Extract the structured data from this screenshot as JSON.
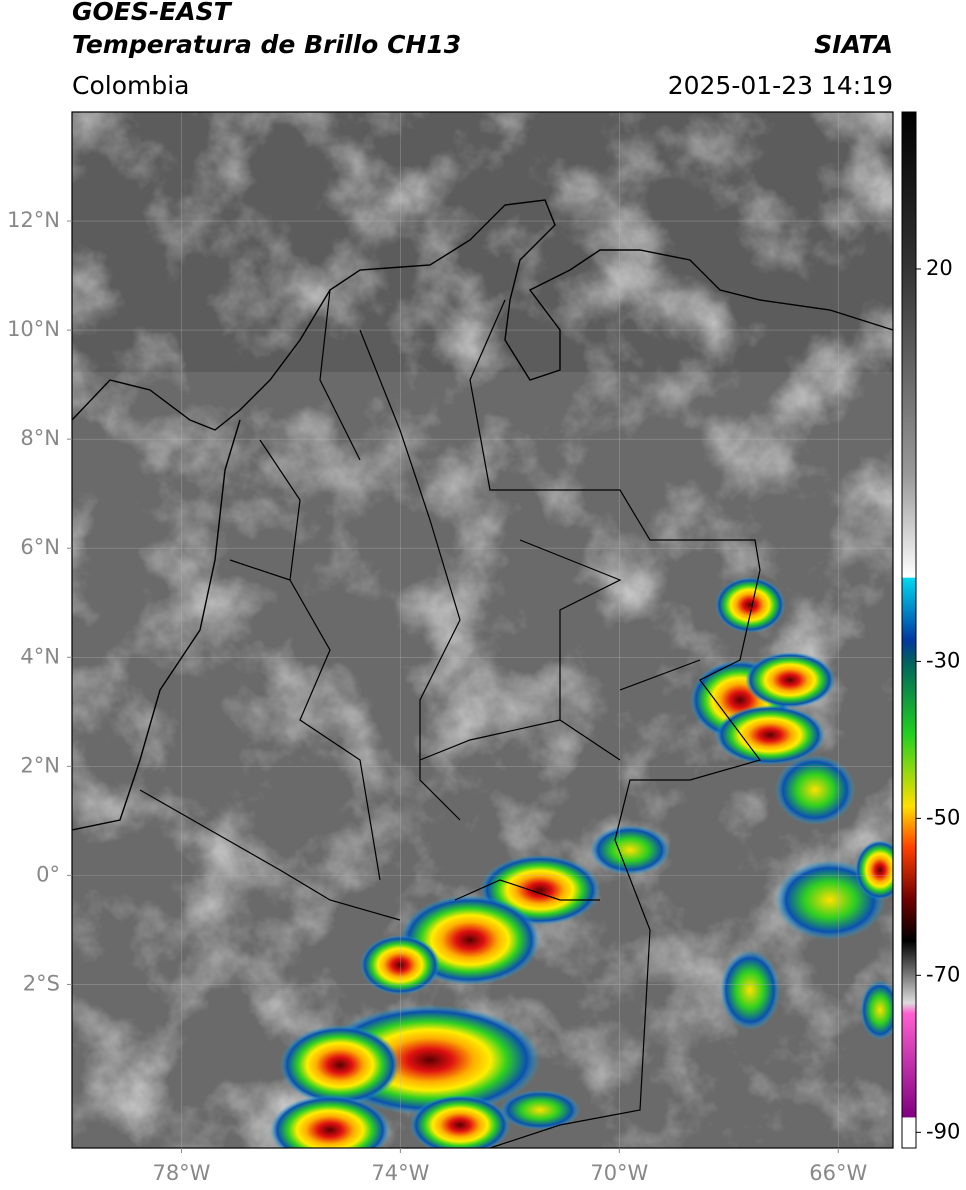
{
  "header": {
    "title": "GOES-EAST",
    "subtitle": "Temperatura de Brillo CH13",
    "source": "SIATA",
    "region": "Colombia",
    "datetime": "2025-01-23 14:19"
  },
  "map": {
    "xlim": [
      -80,
      -65
    ],
    "ylim": [
      -5,
      14
    ],
    "xticks": [
      {
        "value": -78,
        "label": "78°W"
      },
      {
        "value": -74,
        "label": "74°W"
      },
      {
        "value": -70,
        "label": "70°W"
      },
      {
        "value": -66,
        "label": "66°W"
      }
    ],
    "yticks": [
      {
        "value": 12,
        "label": "12°N"
      },
      {
        "value": 10,
        "label": "10°N"
      },
      {
        "value": 8,
        "label": "8°N"
      },
      {
        "value": 6,
        "label": "6°N"
      },
      {
        "value": 4,
        "label": "4°N"
      },
      {
        "value": 2,
        "label": "2°N"
      },
      {
        "value": 0,
        "label": "0°"
      },
      {
        "value": -2,
        "label": "2°S"
      }
    ],
    "grid": true
  },
  "colorbar": {
    "lim": [
      -92,
      40
    ],
    "ticks": [
      20,
      -30,
      -50,
      -70,
      -90
    ]
  }
}
